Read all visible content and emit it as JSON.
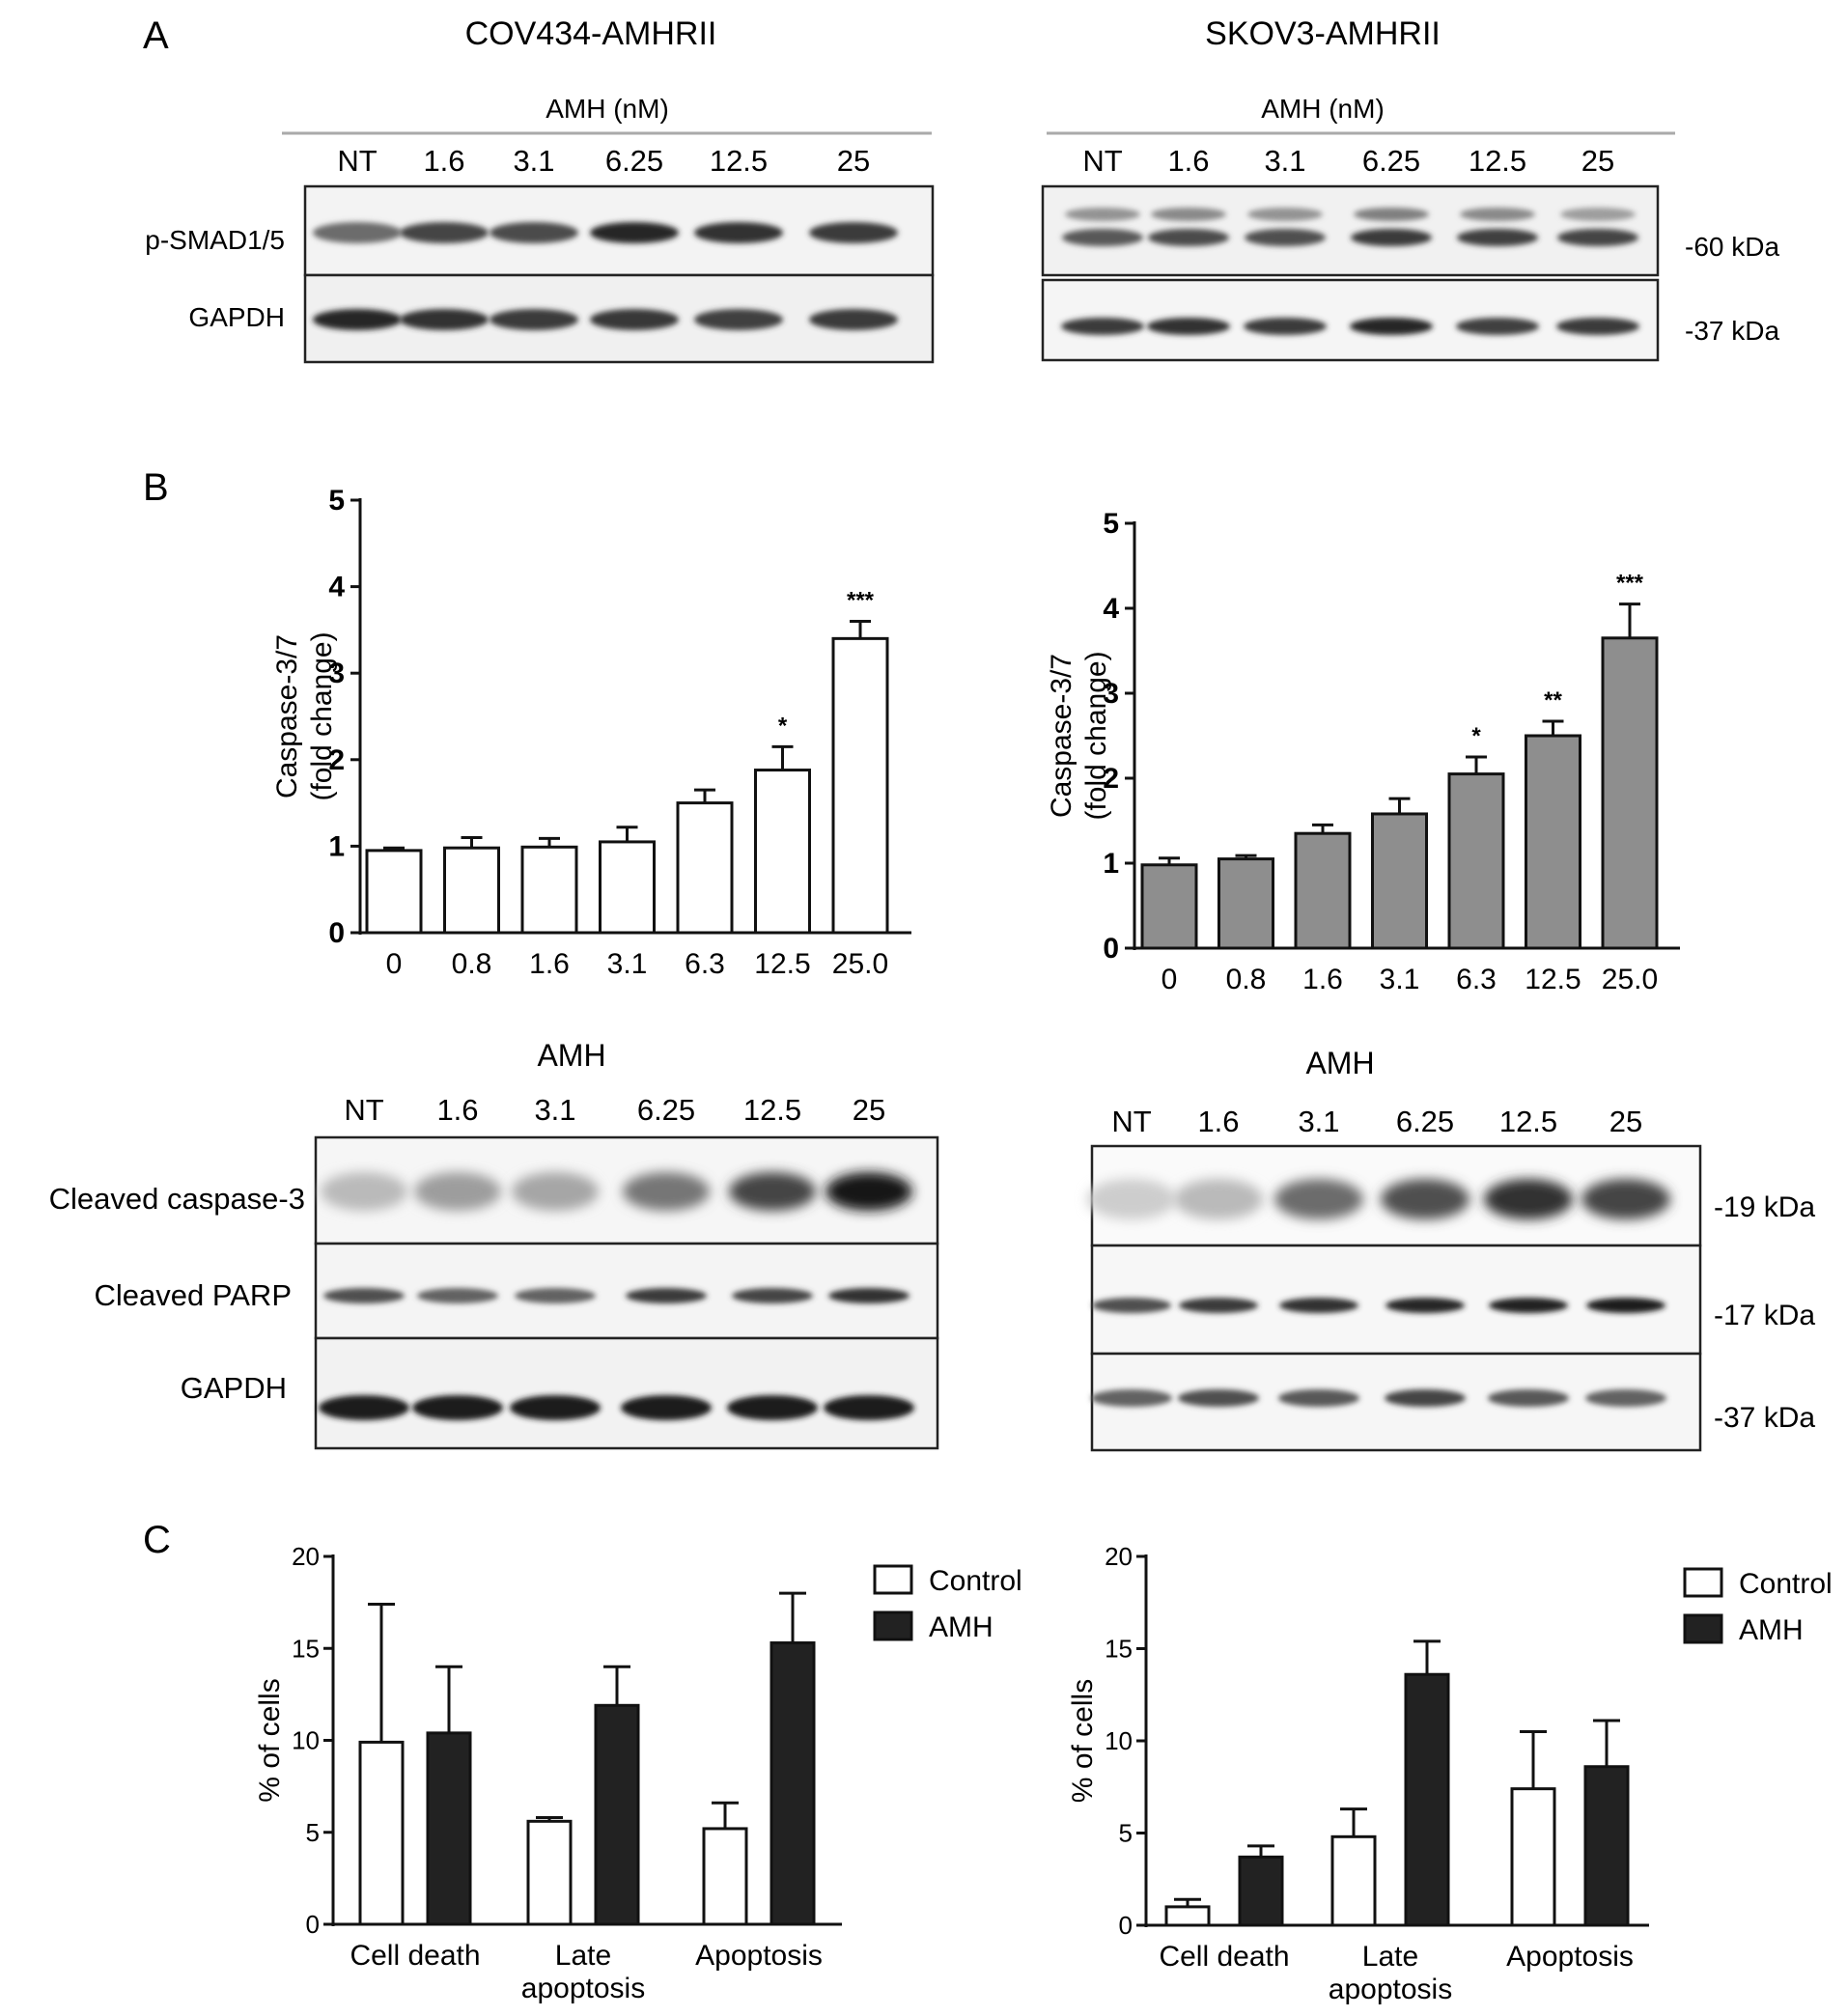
{
  "panel_labels": {
    "a": "A",
    "b": "B",
    "c": "C"
  },
  "panel_a": {
    "left_title": "COV434-AMHRII",
    "right_title": "SKOV3-AMHRII",
    "dose_label": "AMH (nM)",
    "lanes": [
      "NT",
      "1.6",
      "3.1",
      "6.25",
      "12.5",
      "25"
    ],
    "left_rows": [
      "p-SMAD1/5",
      "GAPDH"
    ],
    "right_markers": [
      "-60 kDa",
      "-37 kDa"
    ],
    "band_intensity": {
      "left_psmad": [
        0.55,
        0.75,
        0.72,
        0.9,
        0.85,
        0.8
      ],
      "left_gapdh": [
        0.9,
        0.85,
        0.8,
        0.82,
        0.78,
        0.8
      ],
      "right_psmad_upper": [
        0.35,
        0.4,
        0.35,
        0.45,
        0.4,
        0.3
      ],
      "right_psmad_lower": [
        0.65,
        0.72,
        0.7,
        0.8,
        0.78,
        0.75
      ],
      "right_gapdh": [
        0.8,
        0.85,
        0.8,
        0.9,
        0.78,
        0.8
      ]
    }
  },
  "panel_b_blots": {
    "left_header": "AMH",
    "right_header": "AMH",
    "lanes": [
      "NT",
      "1.6",
      "3.1",
      "6.25",
      "12.5",
      "25"
    ],
    "left_rows": [
      "Cleaved caspase-3",
      "Cleaved PARP",
      "GAPDH"
    ],
    "right_markers": [
      "-19 kDa",
      "-17 kDa",
      "-37 kDa"
    ],
    "band_intensity": {
      "left_casp3": [
        0.15,
        0.3,
        0.25,
        0.5,
        0.75,
        1.0
      ],
      "left_parp": [
        0.7,
        0.6,
        0.6,
        0.8,
        0.75,
        0.85
      ],
      "left_gapdh": [
        0.95,
        0.95,
        0.95,
        0.95,
        0.95,
        0.95
      ],
      "right_casp3": [
        0.05,
        0.15,
        0.55,
        0.7,
        0.85,
        0.75
      ],
      "right_parp": [
        0.7,
        0.8,
        0.85,
        0.9,
        0.92,
        0.95
      ],
      "right_gapdh": [
        0.6,
        0.7,
        0.65,
        0.75,
        0.65,
        0.6
      ]
    }
  },
  "chart_data": [
    {
      "id": "b-left",
      "type": "bar",
      "ylabel_line1": "Caspase-3/7",
      "ylabel_line2": "(fold change)",
      "categories": [
        "0",
        "0.8",
        "1.6",
        "3.1",
        "6.3",
        "12.5",
        "25.0"
      ],
      "values": [
        0.95,
        0.98,
        0.99,
        1.05,
        1.5,
        1.88,
        3.4
      ],
      "errors": [
        0.03,
        0.12,
        0.1,
        0.17,
        0.15,
        0.27,
        0.2
      ],
      "significance": [
        "",
        "",
        "",
        "",
        "",
        "*",
        "***"
      ],
      "yticks": [
        "0",
        "1",
        "2",
        "3",
        "4",
        "5"
      ],
      "ylim": [
        0,
        5
      ],
      "fill": "#ffffff"
    },
    {
      "id": "b-right",
      "type": "bar",
      "ylabel_line1": "Caspase-3/7",
      "ylabel_line2": "(fold change)",
      "categories": [
        "0",
        "0.8",
        "1.6",
        "3.1",
        "6.3",
        "12.5",
        "25.0"
      ],
      "values": [
        0.98,
        1.05,
        1.35,
        1.58,
        2.05,
        2.5,
        3.65
      ],
      "errors": [
        0.08,
        0.04,
        0.1,
        0.18,
        0.2,
        0.17,
        0.4
      ],
      "significance": [
        "",
        "",
        "",
        "",
        "*",
        "**",
        "***"
      ],
      "yticks": [
        "0",
        "1",
        "2",
        "3",
        "4",
        "5"
      ],
      "ylim": [
        0,
        5
      ],
      "fill": "#8e8e8e"
    },
    {
      "id": "c-left",
      "type": "bar",
      "ylabel": "% of cells",
      "categories": [
        [
          "Cell death"
        ],
        [
          "Late",
          "apoptosis"
        ],
        [
          "Apoptosis"
        ]
      ],
      "series": [
        {
          "name": "Control",
          "values": [
            9.9,
            5.6,
            5.2
          ],
          "errors": [
            7.5,
            0.2,
            1.4
          ],
          "color": "#ffffff"
        },
        {
          "name": "AMH",
          "values": [
            10.4,
            11.9,
            15.3
          ],
          "errors": [
            3.6,
            2.1,
            2.7
          ],
          "color": "#222222"
        }
      ],
      "yticks": [
        "0",
        "5",
        "10",
        "15",
        "20"
      ],
      "ylim": [
        0,
        20
      ],
      "legend": "top-right"
    },
    {
      "id": "c-right",
      "type": "bar",
      "ylabel": "% of cells",
      "categories": [
        [
          "Cell death"
        ],
        [
          "Late",
          "apoptosis"
        ],
        [
          "Apoptosis"
        ]
      ],
      "series": [
        {
          "name": "Control",
          "values": [
            1.0,
            4.8,
            7.4
          ],
          "errors": [
            0.4,
            1.5,
            3.1
          ],
          "color": "#ffffff"
        },
        {
          "name": "AMH",
          "values": [
            3.7,
            13.6,
            8.6
          ],
          "errors": [
            0.6,
            1.8,
            2.5
          ],
          "color": "#222222"
        }
      ],
      "yticks": [
        "0",
        "5",
        "10",
        "15",
        "20"
      ],
      "ylim": [
        0,
        20
      ],
      "legend": "top-right"
    }
  ]
}
